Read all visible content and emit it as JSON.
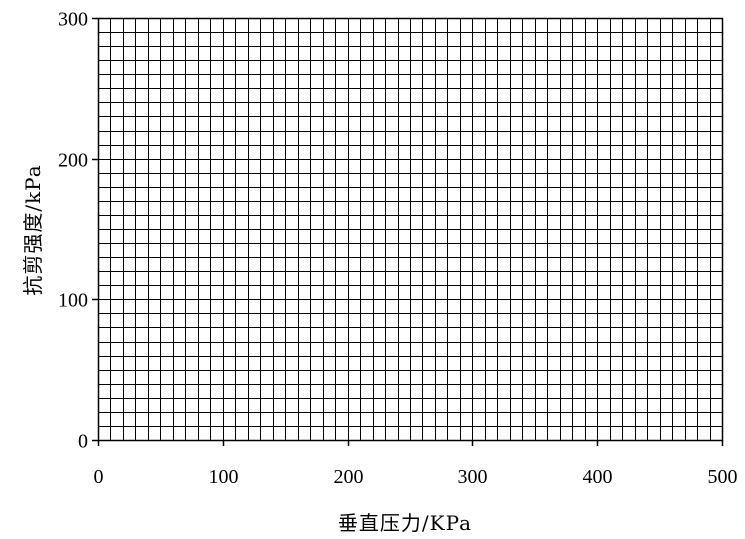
{
  "chart_data": {
    "type": "scatter",
    "title": "",
    "xlabel": "垂直压力/KPa",
    "ylabel": "抗剪强度/kPa",
    "xlim": [
      0,
      500
    ],
    "ylim": [
      0,
      300
    ],
    "x_ticks": [
      0,
      100,
      200,
      300,
      400,
      500
    ],
    "y_ticks": [
      0,
      100,
      200,
      300
    ],
    "x_tick_labels": [
      "0",
      "100",
      "200",
      "300",
      "400",
      "500"
    ],
    "y_tick_labels": [
      "0",
      "100",
      "200",
      "300"
    ],
    "grid": true,
    "minor_grid_x_step": 10,
    "minor_grid_y_step": 10,
    "series": [],
    "colors": {
      "grid": "#000000",
      "axis": "#000000",
      "background": "#ffffff"
    }
  }
}
